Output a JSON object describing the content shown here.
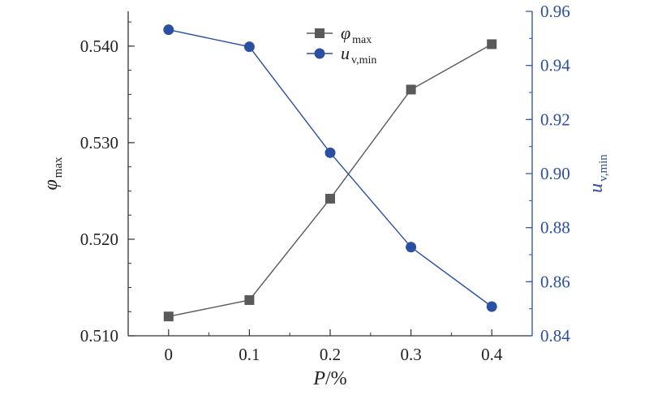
{
  "chart_data": {
    "type": "line",
    "x": [
      0,
      0.1,
      0.2,
      0.3,
      0.4
    ],
    "x_tick_labels": [
      "0",
      "0.1",
      "0.2",
      "0.3",
      "0.4"
    ],
    "xlim": [
      -0.05,
      0.45
    ],
    "xlabel": {
      "main": "P",
      "suffix": "/%"
    },
    "y_left": {
      "label": {
        "main": "φ",
        "sub": "max"
      },
      "lim": [
        0.51,
        0.5436
      ],
      "ticks": [
        0.51,
        0.52,
        0.53,
        0.54
      ],
      "tick_labels": [
        "0.510",
        "0.520",
        "0.530",
        "0.540"
      ],
      "color": "#333333"
    },
    "y_right": {
      "label": {
        "main": "u",
        "sub": "v,min"
      },
      "lim": [
        0.84,
        0.96
      ],
      "ticks": [
        0.84,
        0.86,
        0.88,
        0.9,
        0.92,
        0.94,
        0.96
      ],
      "tick_labels": [
        "0.84",
        "0.86",
        "0.88",
        "0.90",
        "0.92",
        "0.94",
        "0.96"
      ],
      "color": "#2a4fa3"
    },
    "series": [
      {
        "name": {
          "main": "φ",
          "sub": "max"
        },
        "axis": "left",
        "marker": "square",
        "color": "#5a5a5a",
        "values": [
          0.512,
          0.5137,
          0.5242,
          0.5355,
          0.5402
        ]
      },
      {
        "name": {
          "main": "u",
          "sub": "v,min"
        },
        "axis": "right",
        "marker": "circle",
        "color": "#2a4fa3",
        "values": [
          0.9532,
          0.9469,
          0.9077,
          0.8728,
          0.8508
        ]
      }
    ],
    "grid": false,
    "legend_position": "top-center"
  }
}
